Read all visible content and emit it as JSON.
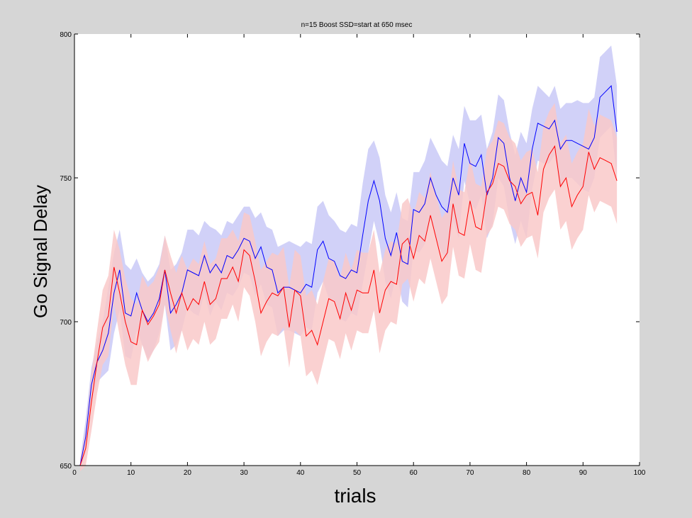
{
  "window": {
    "background_color": "#d6d6d6"
  },
  "chart_data": {
    "type": "line",
    "title": "n=15 Boost SSD=start at 650 msec",
    "xlabel": "trials",
    "ylabel": "Go Signal Delay",
    "xlim": [
      0,
      100
    ],
    "ylim": [
      650,
      800
    ],
    "x_ticks": [
      0,
      10,
      20,
      30,
      40,
      50,
      60,
      70,
      80,
      90,
      100
    ],
    "y_ticks": [
      650,
      700,
      750,
      800
    ],
    "grid": false,
    "legend": "none",
    "x": [
      1,
      2,
      3,
      4,
      5,
      6,
      7,
      8,
      9,
      10,
      11,
      12,
      13,
      14,
      15,
      16,
      17,
      18,
      19,
      20,
      21,
      22,
      23,
      24,
      25,
      26,
      27,
      28,
      29,
      30,
      31,
      32,
      33,
      34,
      35,
      36,
      37,
      38,
      39,
      40,
      41,
      42,
      43,
      44,
      45,
      46,
      47,
      48,
      49,
      50,
      51,
      52,
      53,
      54,
      55,
      56,
      57,
      58,
      59,
      60,
      61,
      62,
      63,
      64,
      65,
      66,
      67,
      68,
      69,
      70,
      71,
      72,
      73,
      74,
      75,
      76,
      77,
      78,
      79,
      80,
      81,
      82,
      83,
      84,
      85,
      86,
      87,
      88,
      89,
      90,
      91,
      92,
      93,
      94,
      95,
      96
    ],
    "series": [
      {
        "color": "#0000ff",
        "band_color": "#c9c9f7",
        "values": [
          650,
          660,
          678,
          686,
          690,
          696,
          710,
          718,
          703,
          702,
          710,
          704,
          700,
          703,
          708,
          718,
          703,
          706,
          710,
          718,
          717,
          716,
          723,
          717,
          720,
          717,
          723,
          722,
          725,
          729,
          728,
          722,
          726,
          719,
          718,
          710,
          712,
          712,
          711,
          710,
          713,
          712,
          725,
          728,
          722,
          721,
          716,
          715,
          718,
          717,
          730,
          742,
          749,
          742,
          729,
          723,
          731,
          721,
          720,
          739,
          738,
          741,
          750,
          744,
          740,
          738,
          750,
          744,
          762,
          755,
          754,
          758,
          744,
          750,
          764,
          762,
          750,
          742,
          750,
          745,
          760,
          769,
          768,
          767,
          770,
          760,
          763,
          763,
          762,
          761,
          760,
          764,
          778,
          780,
          782,
          766
        ],
        "upper": [
          652,
          666,
          684,
          693,
          700,
          712,
          724,
          732,
          720,
          718,
          722,
          717,
          714,
          716,
          720,
          730,
          718,
          720,
          724,
          732,
          732,
          730,
          735,
          733,
          732,
          730,
          735,
          734,
          737,
          740,
          740,
          736,
          738,
          733,
          732,
          726,
          727,
          728,
          727,
          726,
          728,
          727,
          740,
          742,
          737,
          735,
          732,
          731,
          734,
          733,
          748,
          760,
          763,
          757,
          744,
          738,
          745,
          736,
          735,
          752,
          752,
          756,
          764,
          760,
          756,
          754,
          765,
          760,
          775,
          770,
          770,
          772,
          760,
          766,
          779,
          777,
          766,
          758,
          766,
          762,
          774,
          782,
          780,
          778,
          782,
          774,
          776,
          776,
          777,
          776,
          776,
          778,
          792,
          794,
          796,
          782
        ],
        "lower": [
          648,
          655,
          672,
          679,
          681,
          683,
          696,
          704,
          688,
          687,
          697,
          692,
          687,
          690,
          696,
          706,
          690,
          692,
          697,
          705,
          703,
          702,
          710,
          702,
          707,
          704,
          710,
          709,
          712,
          717,
          716,
          709,
          713,
          706,
          705,
          695,
          697,
          697,
          696,
          695,
          698,
          697,
          710,
          714,
          708,
          707,
          701,
          700,
          703,
          702,
          713,
          724,
          735,
          727,
          714,
          708,
          717,
          707,
          705,
          725,
          724,
          727,
          736,
          729,
          724,
          722,
          735,
          729,
          749,
          741,
          739,
          744,
          729,
          734,
          750,
          747,
          735,
          727,
          735,
          729,
          746,
          756,
          755,
          755,
          758,
          746,
          750,
          750,
          748,
          746,
          745,
          750,
          764,
          766,
          768,
          750
        ]
      },
      {
        "color": "#ff0000",
        "band_color": "#f9c9c9",
        "values": [
          650,
          656,
          672,
          686,
          698,
          702,
          719,
          710,
          700,
          693,
          692,
          704,
          699,
          702,
          706,
          718,
          710,
          703,
          710,
          704,
          708,
          706,
          714,
          706,
          708,
          715,
          715,
          719,
          714,
          725,
          723,
          714,
          703,
          707,
          710,
          709,
          712,
          698,
          711,
          709,
          695,
          697,
          692,
          700,
          708,
          707,
          701,
          710,
          704,
          711,
          710,
          710,
          718,
          703,
          711,
          714,
          713,
          727,
          729,
          722,
          730,
          728,
          737,
          729,
          721,
          724,
          741,
          731,
          730,
          742,
          733,
          732,
          745,
          748,
          755,
          754,
          749,
          747,
          741,
          744,
          745,
          737,
          753,
          758,
          761,
          747,
          750,
          740,
          744,
          747,
          759,
          753,
          757,
          756,
          755,
          749
        ],
        "upper": [
          652,
          662,
          682,
          697,
          711,
          716,
          732,
          725,
          715,
          708,
          706,
          716,
          712,
          714,
          719,
          730,
          723,
          717,
          723,
          718,
          722,
          720,
          728,
          720,
          722,
          729,
          729,
          732,
          728,
          738,
          737,
          728,
          718,
          721,
          724,
          723,
          726,
          712,
          725,
          723,
          709,
          711,
          706,
          714,
          722,
          721,
          715,
          724,
          718,
          725,
          724,
          724,
          732,
          717,
          725,
          728,
          727,
          741,
          743,
          737,
          745,
          743,
          752,
          744,
          736,
          739,
          756,
          746,
          745,
          757,
          748,
          747,
          760,
          763,
          770,
          769,
          764,
          762,
          756,
          759,
          760,
          752,
          768,
          773,
          776,
          762,
          765,
          755,
          759,
          762,
          774,
          768,
          772,
          771,
          770,
          764
        ],
        "lower": [
          648,
          650,
          662,
          675,
          685,
          688,
          706,
          695,
          685,
          678,
          678,
          692,
          686,
          690,
          693,
          706,
          697,
          689,
          697,
          690,
          694,
          692,
          700,
          692,
          694,
          701,
          701,
          706,
          700,
          712,
          709,
          700,
          688,
          693,
          696,
          695,
          698,
          684,
          697,
          695,
          681,
          683,
          678,
          686,
          694,
          693,
          687,
          696,
          690,
          697,
          696,
          696,
          704,
          689,
          697,
          700,
          699,
          713,
          715,
          707,
          715,
          713,
          722,
          714,
          706,
          709,
          726,
          716,
          715,
          727,
          718,
          717,
          730,
          733,
          740,
          739,
          734,
          732,
          726,
          729,
          730,
          722,
          738,
          743,
          746,
          732,
          735,
          725,
          729,
          732,
          744,
          738,
          742,
          741,
          740,
          734
        ]
      }
    ]
  }
}
